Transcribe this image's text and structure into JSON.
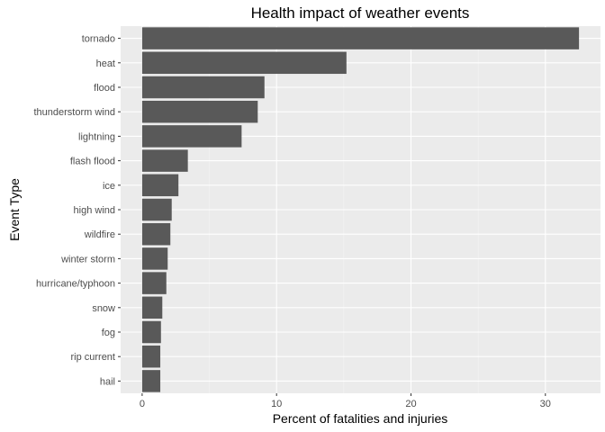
{
  "chart_data": {
    "type": "bar",
    "orientation": "horizontal",
    "title": "Health impact of weather events",
    "xlabel": "Percent of fatalities and injuries",
    "ylabel": "Event Type",
    "categories": [
      "tornado",
      "heat",
      "flood",
      "thunderstorm wind",
      "lightning",
      "flash flood",
      "ice",
      "high wind",
      "wildfire",
      "winter storm",
      "hurricane/typhoon",
      "snow",
      "fog",
      "rip current",
      "hail"
    ],
    "values": [
      32.5,
      15.2,
      9.1,
      8.6,
      7.4,
      3.4,
      2.7,
      2.2,
      2.1,
      1.9,
      1.8,
      1.5,
      1.4,
      1.35,
      1.35
    ],
    "xticks": [
      0,
      10,
      20,
      30
    ],
    "xlim": [
      -1.6,
      34.1
    ],
    "bar_color": "#595959",
    "panel_color": "#ebebeb",
    "grid": true
  }
}
